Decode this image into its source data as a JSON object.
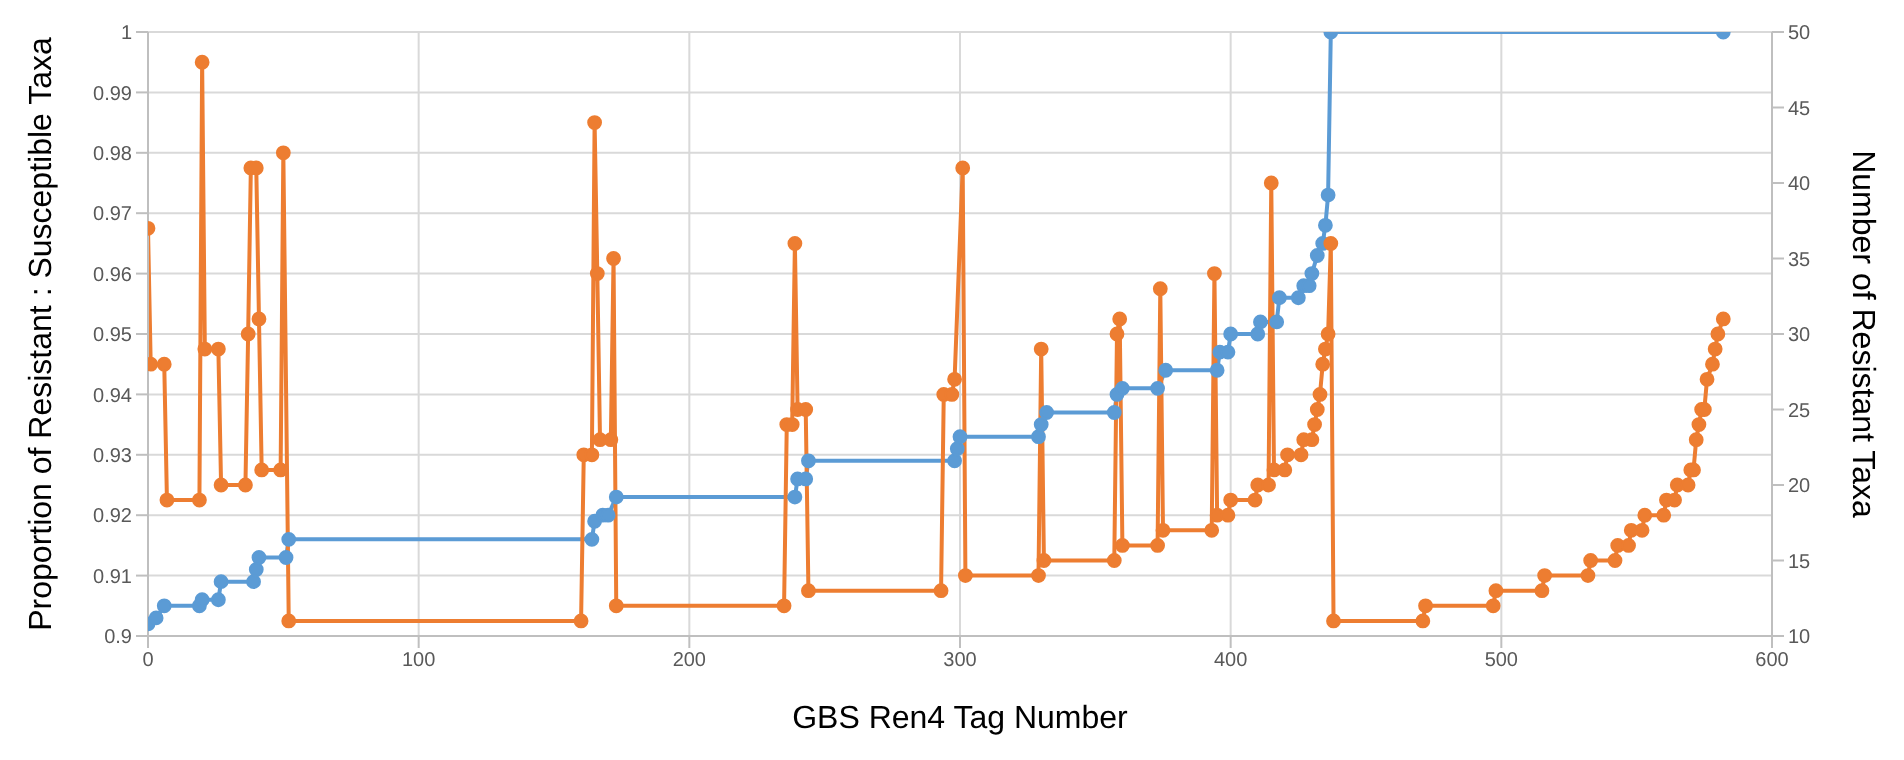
{
  "chart_data": {
    "type": "line",
    "xlabel": "GBS Ren4 Tag Number",
    "ylabel": "Proportion of Resistant : Susceptible Taxa",
    "y2label": "Number of Resistant Taxa",
    "xlim": [
      0,
      600
    ],
    "xticks": [
      0,
      100,
      200,
      300,
      400,
      500,
      600
    ],
    "ylim": [
      0.9,
      1
    ],
    "yticks": [
      0.9,
      0.91,
      0.92,
      0.93,
      0.94,
      0.95,
      0.96,
      0.97,
      0.98,
      0.99,
      1
    ],
    "y2lim": [
      10,
      50
    ],
    "y2ticks": [
      10,
      15,
      20,
      25,
      30,
      35,
      40,
      45,
      50
    ],
    "grid": true,
    "marker": "circle",
    "line_style": "solid",
    "series": [
      {
        "color": "#5b9bd5",
        "x": [
          0,
          3,
          6,
          19,
          20,
          26,
          27,
          39,
          40,
          41,
          51,
          52,
          164,
          165,
          168,
          170,
          173,
          239,
          240,
          243,
          244,
          298,
          299,
          300,
          329,
          330,
          332,
          357,
          358,
          360,
          373,
          376,
          395,
          396,
          399,
          400,
          410,
          411,
          417,
          418,
          425,
          427,
          429,
          430,
          432,
          434,
          435,
          436,
          437,
          582
        ],
        "values": [
          0.902,
          0.903,
          0.905,
          0.905,
          0.906,
          0.906,
          0.909,
          0.909,
          0.911,
          0.913,
          0.913,
          0.916,
          0.916,
          0.919,
          0.92,
          0.92,
          0.923,
          0.923,
          0.926,
          0.926,
          0.929,
          0.929,
          0.931,
          0.933,
          0.933,
          0.935,
          0.937,
          0.937,
          0.94,
          0.941,
          0.941,
          0.944,
          0.944,
          0.947,
          0.947,
          0.95,
          0.95,
          0.952,
          0.952,
          0.956,
          0.956,
          0.958,
          0.958,
          0.96,
          0.963,
          0.965,
          0.968,
          0.973,
          1,
          1
        ]
      },
      {
        "color": "#ed7d31",
        "axis": "y2",
        "x": [
          0,
          1,
          6,
          7,
          19,
          20,
          21,
          26,
          27,
          36,
          37,
          38,
          40,
          41,
          42,
          49,
          50,
          52,
          160,
          161,
          164,
          165,
          166,
          167,
          171,
          172,
          173,
          235,
          236,
          238,
          239,
          240,
          243,
          244,
          293,
          294,
          297,
          298,
          301,
          302,
          329,
          330,
          331,
          357,
          358,
          359,
          360,
          373,
          374,
          375,
          393,
          394,
          395,
          399,
          400,
          409,
          410,
          414,
          415,
          416,
          420,
          421,
          426,
          427,
          430,
          431,
          432,
          433,
          434,
          435,
          436,
          437,
          438,
          471,
          472,
          497,
          498,
          515,
          516,
          532,
          533,
          542,
          543,
          547,
          548,
          552,
          553,
          560,
          561,
          564,
          565,
          569,
          570,
          571,
          572,
          573,
          574,
          575,
          576,
          578,
          579,
          580,
          582
        ],
        "values": [
          37,
          28,
          28,
          19,
          19,
          48,
          29,
          29,
          20,
          20,
          30,
          41,
          41,
          31,
          21,
          21,
          42,
          11,
          11,
          22,
          22,
          44,
          34,
          23,
          23,
          35,
          12,
          12,
          24,
          24,
          36,
          25,
          25,
          13,
          13,
          26,
          26,
          27,
          41,
          14,
          14,
          29,
          15,
          15,
          30,
          31,
          16,
          16,
          33,
          17,
          17,
          34,
          18,
          18,
          19,
          19,
          20,
          20,
          40,
          21,
          21,
          22,
          22,
          23,
          23,
          24,
          25,
          26,
          28,
          29,
          30,
          36,
          11,
          11,
          12,
          12,
          13,
          13,
          14,
          14,
          15,
          15,
          16,
          16,
          17,
          17,
          18,
          18,
          19,
          19,
          20,
          20,
          21,
          21,
          23,
          24,
          25,
          25,
          27,
          28,
          29,
          30,
          31
        ]
      }
    ]
  }
}
